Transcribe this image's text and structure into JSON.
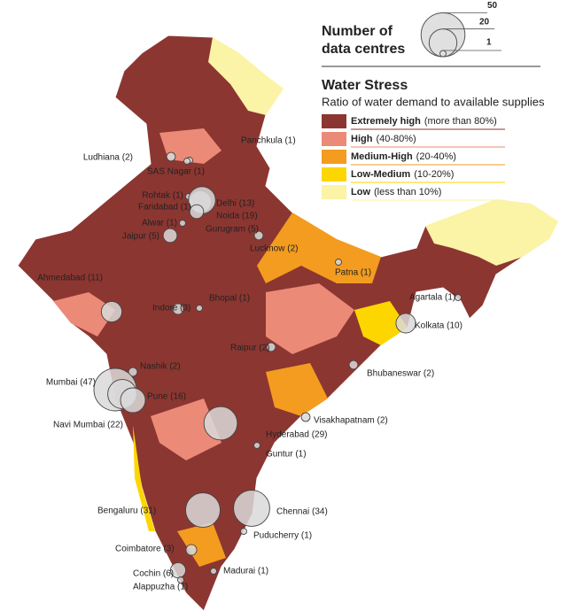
{
  "size_legend": {
    "title_lines": [
      "Number of",
      "data centres"
    ],
    "values": [
      50,
      20,
      1
    ]
  },
  "water_stress": {
    "title": "Water Stress",
    "subtitle": "Ratio of water demand to available supplies",
    "classes": [
      {
        "label": "Extremely high",
        "range": "(more than 80%)",
        "color": "#8c3631"
      },
      {
        "label": "High",
        "range": "(40-80%)",
        "color": "#ec8a78"
      },
      {
        "label": "Medium-High",
        "range": "(20-40%)",
        "color": "#f39c1f"
      },
      {
        "label": "Low-Medium",
        "range": "(10-20%)",
        "color": "#fdd600"
      },
      {
        "label": "Low",
        "range": "(less than 10%)",
        "color": "#fbf3a6"
      }
    ]
  },
  "cities": [
    {
      "label": "Panchkula (1)",
      "count": 1
    },
    {
      "label": "Ludhiana (2)",
      "count": 2
    },
    {
      "label": "SAS Nagar (1)",
      "count": 1
    },
    {
      "label": "Rohtak (1)",
      "count": 1
    },
    {
      "label": "Delhi (13)",
      "count": 13
    },
    {
      "label": "Faridabad (1)",
      "count": 1
    },
    {
      "label": "Noida (19)",
      "count": 19
    },
    {
      "label": "Alwar (1)",
      "count": 1
    },
    {
      "label": "Gurugram (5)",
      "count": 5
    },
    {
      "label": "Jaipur (5)",
      "count": 5
    },
    {
      "label": "Lucknow (2)",
      "count": 2
    },
    {
      "label": "Ahmedabad (11)",
      "count": 11
    },
    {
      "label": "Bhopal (1)",
      "count": 1
    },
    {
      "label": "Indore (3)",
      "count": 3
    },
    {
      "label": "Patna (1)",
      "count": 1
    },
    {
      "label": "Agartala (1)",
      "count": 1
    },
    {
      "label": "Kolkata (10)",
      "count": 10
    },
    {
      "label": "Raipur (2)",
      "count": 2
    },
    {
      "label": "Bhubaneswar (2)",
      "count": 2
    },
    {
      "label": "Nashik (2)",
      "count": 2
    },
    {
      "label": "Mumbai (47)",
      "count": 47
    },
    {
      "label": "Navi Mumbai (22)",
      "count": 22
    },
    {
      "label": "Pune (16)",
      "count": 16
    },
    {
      "label": "Visakhapatnam (2)",
      "count": 2
    },
    {
      "label": "Hyderabad (29)",
      "count": 29
    },
    {
      "label": "Guntur (1)",
      "count": 1
    },
    {
      "label": "Bengaluru (31)",
      "count": 31
    },
    {
      "label": "Chennai (34)",
      "count": 34
    },
    {
      "label": "Puducherry (1)",
      "count": 1
    },
    {
      "label": "Coimbatore (3)",
      "count": 3
    },
    {
      "label": "Cochin (6)",
      "count": 6
    },
    {
      "label": "Alappuzha (1)",
      "count": 1
    },
    {
      "label": "Madurai (1)",
      "count": 1
    }
  ]
}
